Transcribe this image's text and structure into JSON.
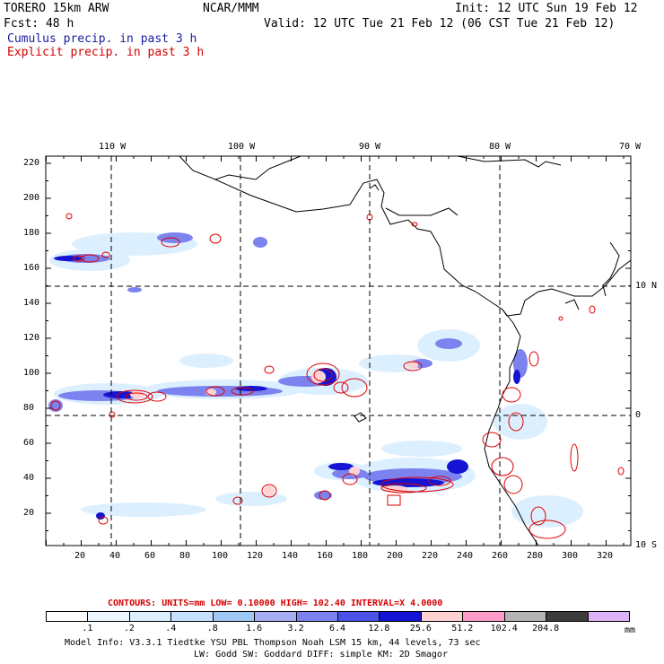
{
  "header": {
    "model": "TORERO  15km ARW",
    "org": "NCAR/MMM",
    "init": "Init: 12 UTC Sun 19 Feb 12",
    "fcst": "Fcst:   48 h",
    "valid": "Valid: 12 UTC Tue 21 Feb 12 (06 CST Tue 21 Feb 12)",
    "line_cumulus": "Cumulus precip. in past 3 h",
    "line_explicit": "Explicit precip. in past 3 h"
  },
  "colors": {
    "cumulus_text": "#1a1aa0",
    "explicit_text": "#d40000",
    "contour": "#e00000",
    "coast": "#000000"
  },
  "map": {
    "top_lon_labels": [
      "110 W",
      "100 W",
      "90 W",
      "80 W",
      "70 W"
    ],
    "right_lat_labels": [
      "10 N",
      "0",
      "10 S"
    ],
    "y_ticks": [
      "220",
      "200",
      "180",
      "160",
      "140",
      "120",
      "100",
      "80",
      "60",
      "40",
      "20"
    ],
    "x_ticks": [
      "20",
      "40",
      "60",
      "80",
      "100",
      "120",
      "140",
      "160",
      "180",
      "200",
      "220",
      "240",
      "260",
      "280",
      "300",
      "320"
    ]
  },
  "contour_info": {
    "label": "CONTOURS:  UNITS=mm  LOW= 0.10000      HIGH=  102.40     INTERVAL=X  4.0000"
  },
  "legend": {
    "colors": [
      "#ffffff",
      "#eef7ff",
      "#dcefff",
      "#c4e2ff",
      "#a0c8f5",
      "#a8acf2",
      "#7c82ee",
      "#4a52e8",
      "#1414d2",
      "#ffd2d2",
      "#ff9cc8",
      "#b4b4b4",
      "#3c3c3c",
      "#dcb4f5"
    ],
    "labels": [
      ".1",
      ".2",
      ".4",
      ".8",
      "1.6",
      "3.2",
      "6.4",
      "12.8",
      "25.6",
      "51.2",
      "102.4",
      "204.8"
    ],
    "unit": "mm"
  },
  "footer": {
    "line1": "Model Info: V3.3.1    Tiedtke YSU PBL  Thompson    Noah LSM  15 km,   44 levels,   73 sec",
    "line2": "LW: Godd SW: Goddard DIFF: simple KM: 2D Smagor"
  }
}
